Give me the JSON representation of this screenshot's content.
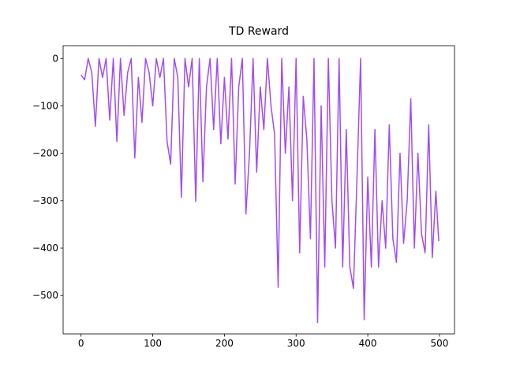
{
  "chart_data": {
    "type": "line",
    "title": "TD Reward",
    "x": [
      0,
      5,
      10,
      15,
      20,
      25,
      30,
      35,
      40,
      45,
      50,
      55,
      60,
      65,
      70,
      75,
      80,
      85,
      90,
      95,
      100,
      105,
      110,
      115,
      120,
      125,
      130,
      135,
      140,
      145,
      150,
      155,
      160,
      165,
      170,
      175,
      180,
      185,
      190,
      195,
      200,
      205,
      210,
      215,
      220,
      225,
      230,
      235,
      240,
      245,
      250,
      255,
      260,
      265,
      270,
      275,
      280,
      285,
      290,
      295,
      300,
      305,
      310,
      315,
      320,
      325,
      330,
      335,
      340,
      345,
      350,
      355,
      360,
      365,
      370,
      375,
      380,
      385,
      390,
      395,
      400,
      405,
      410,
      415,
      420,
      425,
      430,
      435,
      440,
      445,
      450,
      455,
      460,
      465,
      470,
      475,
      480,
      485,
      490,
      495,
      499
    ],
    "series": [
      {
        "color": "#a24cf5",
        "values": [
          -35,
          -45,
          0,
          -30,
          -143,
          0,
          -40,
          0,
          -130,
          0,
          -175,
          0,
          -120,
          -30,
          0,
          -210,
          -40,
          -135,
          0,
          -30,
          -100,
          0,
          -40,
          0,
          -175,
          -223,
          0,
          -40,
          -293,
          0,
          -60,
          0,
          -302,
          0,
          -260,
          -60,
          0,
          -150,
          0,
          -180,
          -40,
          -170,
          0,
          -265,
          -60,
          0,
          -328,
          -200,
          0,
          -240,
          -60,
          -150,
          0,
          -100,
          -160,
          -483,
          0,
          -200,
          -60,
          -300,
          0,
          -410,
          -80,
          -170,
          -380,
          0,
          -557,
          -100,
          -440,
          0,
          -300,
          -400,
          0,
          -440,
          -150,
          -440,
          -485,
          -250,
          0,
          -551,
          -250,
          -440,
          -150,
          -440,
          -300,
          -400,
          -140,
          -380,
          -430,
          -200,
          -390,
          -300,
          -85,
          -400,
          -200,
          -370,
          -410,
          -140,
          -420,
          -280,
          -385
        ]
      }
    ],
    "xlim": [
      -25,
      521
    ],
    "ylim": [
      -581,
      27
    ],
    "xticks": [
      0,
      100,
      200,
      300,
      400,
      500
    ],
    "yticks": [
      0,
      {
        "value": -100,
        "label": "−100"
      },
      {
        "value": -200,
        "label": "−200"
      },
      {
        "value": -300,
        "label": "−300"
      },
      {
        "value": -400,
        "label": "−400"
      },
      {
        "value": -500,
        "label": "−500"
      }
    ]
  }
}
